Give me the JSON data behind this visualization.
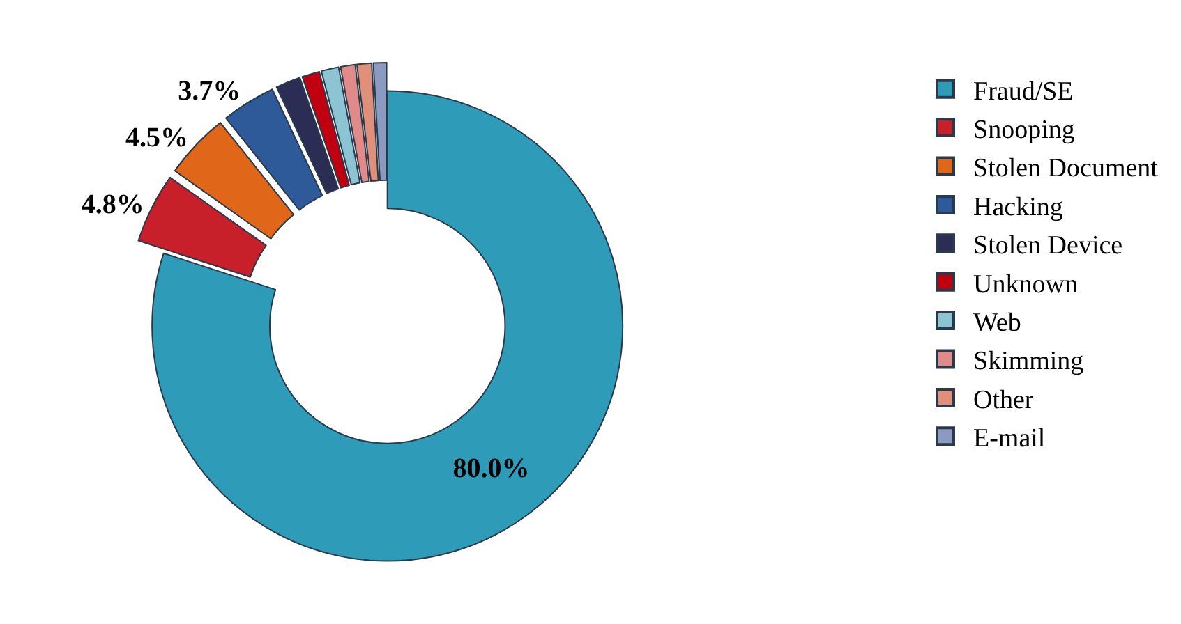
{
  "chart_data": {
    "type": "donut",
    "categories": [
      "Fraud/SE",
      "Snooping",
      "Stolen Document",
      "Hacking",
      "Stolen Device",
      "Unknown",
      "Web",
      "Skimming",
      "Other",
      "E-mail"
    ],
    "values": [
      80.0,
      4.8,
      4.5,
      3.7,
      1.7,
      1.2,
      1.2,
      1.0,
      1.0,
      0.9
    ],
    "value_labels": [
      "80.0%",
      "4.8%",
      "4.5%",
      "3.7%",
      null,
      null,
      null,
      null,
      null,
      null
    ],
    "colors": [
      "#2e9cb8",
      "#c8202a",
      "#e0661a",
      "#2f5a9a",
      "#2b2d55",
      "#c00010",
      "#8cc4d4",
      "#e08a8a",
      "#e0907a",
      "#8a9ac0"
    ],
    "legend": "right"
  }
}
